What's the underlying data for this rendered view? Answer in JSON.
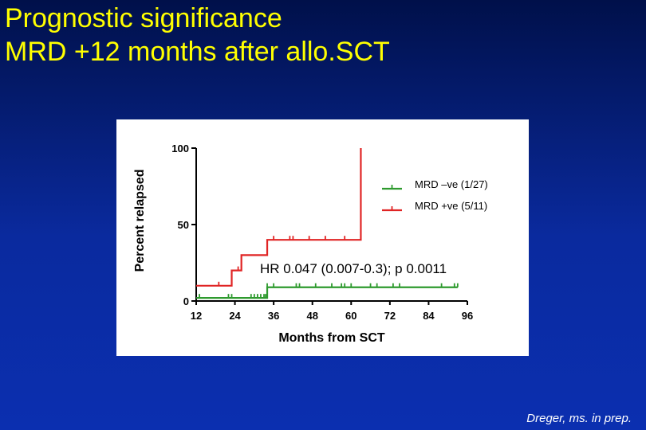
{
  "slide": {
    "title_line1": "Prognostic significance",
    "title_line2": "MRD +12 months after allo.SCT",
    "citation": "Dreger, ms. in prep."
  },
  "chart_data": {
    "type": "line",
    "title": "",
    "xlabel": "Months from SCT",
    "ylabel": "Percent relapsed",
    "xlim": [
      12,
      96
    ],
    "ylim": [
      0,
      100
    ],
    "x_ticks": [
      12,
      24,
      36,
      48,
      60,
      72,
      84,
      96
    ],
    "y_ticks": [
      0,
      50,
      100
    ],
    "legend_position": "top-right",
    "annotation": "HR 0.047 (0.007-0.3); p 0.0011",
    "series": [
      {
        "name": "MRD –ve (1/27)",
        "color": "#2e9a2e",
        "steps": [
          [
            12,
            2
          ],
          [
            34,
            2
          ],
          [
            34,
            9
          ],
          [
            93,
            9
          ]
        ],
        "censor_x": [
          13,
          22,
          23,
          29,
          30,
          31,
          32,
          33,
          33.5,
          34,
          36,
          43,
          44,
          49,
          54,
          57,
          58,
          60,
          66,
          68,
          73,
          75,
          88,
          92,
          93
        ]
      },
      {
        "name": "MRD +ve (5/11)",
        "color": "#e02424",
        "steps": [
          [
            12,
            10
          ],
          [
            23,
            10
          ],
          [
            23,
            20
          ],
          [
            26,
            20
          ],
          [
            26,
            30
          ],
          [
            34,
            30
          ],
          [
            34,
            40
          ],
          [
            63,
            40
          ],
          [
            63,
            100
          ]
        ],
        "censor_x": [
          19,
          25,
          36,
          41,
          42,
          47,
          52,
          58
        ]
      }
    ]
  }
}
